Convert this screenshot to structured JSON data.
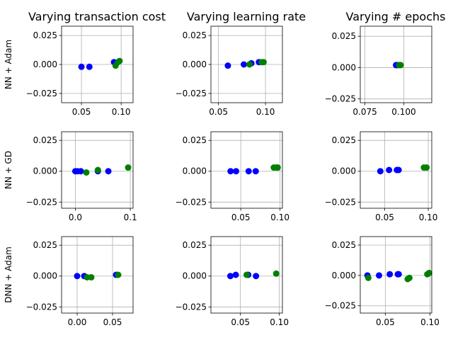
{
  "figure": {
    "col_titles": [
      "Varying transaction cost",
      "Varying learning rate",
      "Varying # epochs"
    ],
    "row_labels": [
      "NN + Adam",
      "NN + GD",
      "DNN + Adam"
    ]
  },
  "chart_data": [
    {
      "type": "scatter",
      "row": 0,
      "col": 0,
      "xlim": [
        0.025,
        0.115
      ],
      "ylim": [
        -0.033,
        0.033
      ],
      "xticks": [
        0.05,
        0.1
      ],
      "xticklabels": [
        "0.05",
        "0.10"
      ],
      "yticks": [
        0.025,
        0.0,
        -0.025
      ],
      "yticklabels": [
        "0.025",
        "0.000",
        "−0.025"
      ],
      "series": [
        {
          "color": "#0000ff",
          "points": [
            [
              0.05,
              -0.002
            ],
            [
              0.06,
              -0.002
            ],
            [
              0.091,
              0.002
            ],
            [
              0.093,
              0.001
            ]
          ]
        },
        {
          "color": "#008000",
          "points": [
            [
              0.093,
              -0.001
            ],
            [
              0.096,
              0.002
            ],
            [
              0.098,
              0.003
            ]
          ]
        }
      ]
    },
    {
      "type": "scatter",
      "row": 0,
      "col": 1,
      "xlim": [
        0.042,
        0.118
      ],
      "ylim": [
        -0.033,
        0.033
      ],
      "xticks": [
        0.05,
        0.1
      ],
      "xticklabels": [
        "0.05",
        "0.10"
      ],
      "yticks": [
        0.025,
        0.0,
        -0.025
      ],
      "yticklabels": [
        "0.025",
        "0.000",
        "−0.025"
      ],
      "series": [
        {
          "color": "#0000ff",
          "points": [
            [
              0.06,
              -0.001
            ],
            [
              0.077,
              0.0
            ],
            [
              0.085,
              0.001
            ],
            [
              0.093,
              0.002
            ]
          ]
        },
        {
          "color": "#008000",
          "points": [
            [
              0.083,
              0.0
            ],
            [
              0.096,
              0.002
            ],
            [
              0.098,
              0.002
            ]
          ]
        }
      ]
    },
    {
      "type": "scatter",
      "row": 0,
      "col": 2,
      "xlim": [
        0.072,
        0.118
      ],
      "ylim": [
        -0.028,
        0.033
      ],
      "xticks": [
        0.075,
        0.1
      ],
      "xticklabels": [
        "0.075",
        "0.100"
      ],
      "yticks": [
        0.025,
        0.0,
        -0.025
      ],
      "yticklabels": [
        "0.025",
        "0.000",
        "−0.025"
      ],
      "series": [
        {
          "color": "#0000ff",
          "points": [
            [
              0.095,
              0.002
            ],
            [
              0.096,
              0.002
            ]
          ]
        },
        {
          "color": "#008000",
          "points": [
            [
              0.097,
              0.002
            ],
            [
              0.098,
              0.002
            ]
          ]
        }
      ]
    },
    {
      "type": "scatter",
      "row": 1,
      "col": 0,
      "xlim": [
        -0.025,
        0.105
      ],
      "ylim": [
        -0.03,
        0.032
      ],
      "xticks": [
        0.0,
        0.1
      ],
      "xticklabels": [
        "0.0",
        "0.1"
      ],
      "yticks": [
        0.025,
        0.0,
        -0.025
      ],
      "yticklabels": [
        "0.025",
        "0.000",
        "−0.025"
      ],
      "series": [
        {
          "color": "#0000ff",
          "points": [
            [
              0.0,
              0.0
            ],
            [
              0.004,
              0.0
            ],
            [
              0.01,
              0.0
            ],
            [
              0.041,
              0.0
            ],
            [
              0.06,
              0.0
            ]
          ]
        },
        {
          "color": "#008000",
          "points": [
            [
              0.02,
              -0.001
            ],
            [
              0.041,
              0.001
            ],
            [
              0.096,
              0.003
            ]
          ]
        }
      ]
    },
    {
      "type": "scatter",
      "row": 1,
      "col": 1,
      "xlim": [
        0.012,
        0.103
      ],
      "ylim": [
        -0.03,
        0.032
      ],
      "xticks": [
        0.05,
        0.1
      ],
      "xticklabels": [
        "0.05",
        "0.10"
      ],
      "yticks": [
        0.025,
        0.0,
        -0.025
      ],
      "yticklabels": [
        "0.025",
        "0.000",
        "−0.025"
      ],
      "series": [
        {
          "color": "#0000ff",
          "points": [
            [
              0.037,
              0.0
            ],
            [
              0.044,
              0.0
            ],
            [
              0.06,
              0.0
            ],
            [
              0.069,
              0.0
            ]
          ]
        },
        {
          "color": "#008000",
          "points": [
            [
              0.092,
              0.003
            ],
            [
              0.095,
              0.003
            ],
            [
              0.097,
              0.003
            ]
          ]
        }
      ]
    },
    {
      "type": "scatter",
      "row": 1,
      "col": 2,
      "xlim": [
        0.022,
        0.104
      ],
      "ylim": [
        -0.03,
        0.032
      ],
      "xticks": [
        0.05,
        0.1
      ],
      "xticklabels": [
        "0.05",
        "0.10"
      ],
      "yticks": [
        0.025,
        0.0,
        -0.025
      ],
      "yticklabels": [
        "0.025",
        "0.000",
        "−0.025"
      ],
      "series": [
        {
          "color": "#0000ff",
          "points": [
            [
              0.045,
              0.0
            ],
            [
              0.055,
              0.001
            ],
            [
              0.064,
              0.001
            ],
            [
              0.066,
              0.001
            ]
          ]
        },
        {
          "color": "#008000",
          "points": [
            [
              0.095,
              0.003
            ],
            [
              0.098,
              0.003
            ]
          ]
        }
      ]
    },
    {
      "type": "scatter",
      "row": 2,
      "col": 0,
      "xlim": [
        -0.022,
        0.079
      ],
      "ylim": [
        -0.03,
        0.032
      ],
      "xticks": [
        0.0,
        0.05
      ],
      "xticklabels": [
        "0.00",
        "0.05"
      ],
      "yticks": [
        0.025,
        0.0,
        -0.025
      ],
      "yticklabels": [
        "0.025",
        "0.000",
        "−0.025"
      ],
      "series": [
        {
          "color": "#0000ff",
          "points": [
            [
              0.0,
              0.0
            ],
            [
              0.01,
              0.0
            ],
            [
              0.055,
              0.001
            ]
          ]
        },
        {
          "color": "#008000",
          "points": [
            [
              0.014,
              -0.001
            ],
            [
              0.02,
              -0.001
            ],
            [
              0.058,
              0.001
            ]
          ]
        }
      ]
    },
    {
      "type": "scatter",
      "row": 2,
      "col": 1,
      "xlim": [
        0.012,
        0.104
      ],
      "ylim": [
        -0.03,
        0.032
      ],
      "xticks": [
        0.05,
        0.1
      ],
      "xticklabels": [
        "0.05",
        "0.10"
      ],
      "yticks": [
        0.025,
        0.0,
        -0.025
      ],
      "yticklabels": [
        "0.025",
        "0.000",
        "−0.025"
      ],
      "series": [
        {
          "color": "#0000ff",
          "points": [
            [
              0.037,
              0.0
            ],
            [
              0.044,
              0.001
            ],
            [
              0.06,
              0.001
            ],
            [
              0.07,
              0.0
            ]
          ]
        },
        {
          "color": "#008000",
          "points": [
            [
              0.058,
              0.001
            ],
            [
              0.096,
              0.002
            ]
          ]
        }
      ]
    },
    {
      "type": "scatter",
      "row": 2,
      "col": 2,
      "xlim": [
        0.022,
        0.102
      ],
      "ylim": [
        -0.031,
        0.032
      ],
      "xticks": [
        0.05,
        0.1
      ],
      "xticklabels": [
        "0.05",
        "0.10"
      ],
      "yticks": [
        0.025,
        0.0,
        -0.025
      ],
      "yticklabels": [
        "0.025",
        "0.000",
        "−0.025"
      ],
      "series": [
        {
          "color": "#0000ff",
          "points": [
            [
              0.03,
              0.0
            ],
            [
              0.043,
              0.0
            ],
            [
              0.055,
              0.001
            ],
            [
              0.064,
              0.001
            ],
            [
              0.065,
              0.001
            ]
          ]
        },
        {
          "color": "#008000",
          "points": [
            [
              0.031,
              -0.002
            ],
            [
              0.075,
              -0.003
            ],
            [
              0.077,
              -0.002
            ],
            [
              0.097,
              0.001
            ],
            [
              0.099,
              0.002
            ]
          ]
        }
      ]
    }
  ]
}
